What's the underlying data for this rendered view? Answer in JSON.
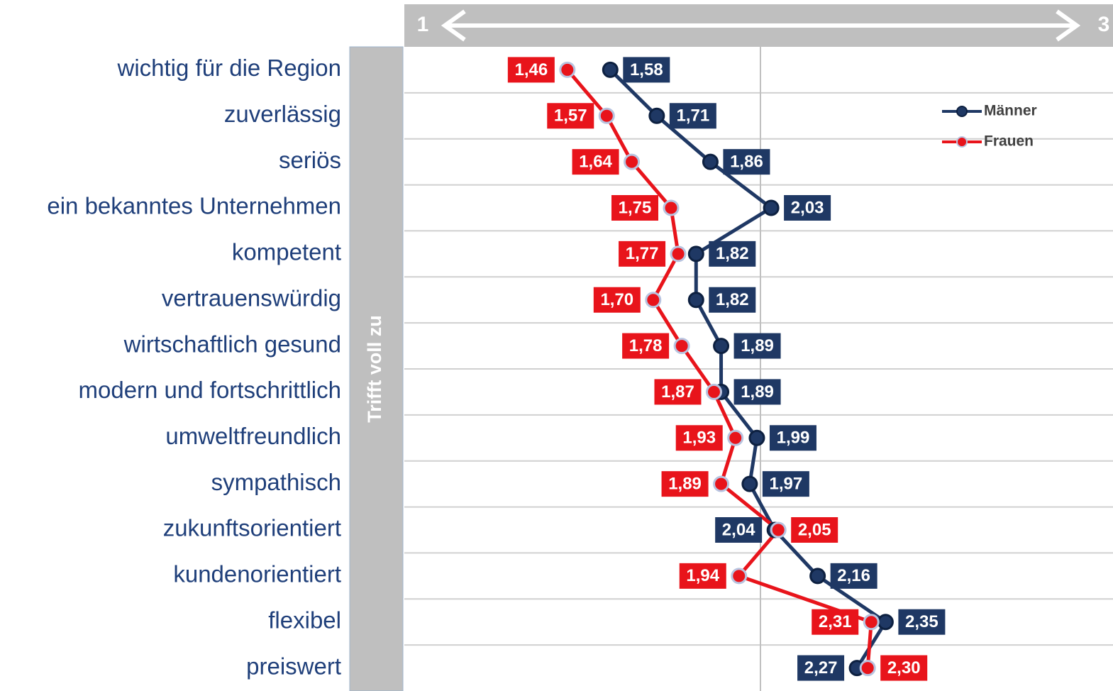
{
  "chart_data": {
    "type": "line",
    "orientation": "horizontal",
    "axis_label": "Trifft voll zu",
    "categories": [
      "wichtig für die Region",
      "zuverlässig",
      "seriös",
      "ein bekanntes Unternehmen",
      "kompetent",
      "vertrauenswürdig",
      "wirtschaftlich gesund",
      "modern und fortschrittlich",
      "umweltfreundlich",
      "sympathisch",
      "zukunftsorientiert",
      "kundenorientiert",
      "flexibel",
      "preiswert"
    ],
    "series": [
      {
        "name": "Männer",
        "color": "#1f3864",
        "values": [
          1.58,
          1.71,
          1.86,
          2.03,
          1.82,
          1.82,
          1.89,
          1.89,
          1.99,
          1.97,
          2.04,
          2.16,
          2.35,
          2.27
        ],
        "value_labels": [
          "1,58",
          "1,71",
          "1,86",
          "2,03",
          "1,82",
          "1,82",
          "1,89",
          "1,89",
          "1,99",
          "1,97",
          "2,04",
          "2,16",
          "2,35",
          "2,27"
        ]
      },
      {
        "name": "Frauen",
        "color": "#e8141b",
        "values": [
          1.46,
          1.57,
          1.64,
          1.75,
          1.77,
          1.7,
          1.78,
          1.87,
          1.93,
          1.89,
          2.05,
          1.94,
          2.31,
          2.3
        ],
        "value_labels": [
          "1,46",
          "1,57",
          "1,64",
          "1,75",
          "1,77",
          "1,70",
          "1,78",
          "1,87",
          "1,93",
          "1,89",
          "2,05",
          "1,94",
          "2,31",
          "2,30"
        ]
      }
    ],
    "xlim": [
      1,
      3
    ],
    "xticks": [
      1,
      {
        "value": 2,
        "label": null
      },
      3
    ],
    "grid": true,
    "legend": "upper right"
  }
}
